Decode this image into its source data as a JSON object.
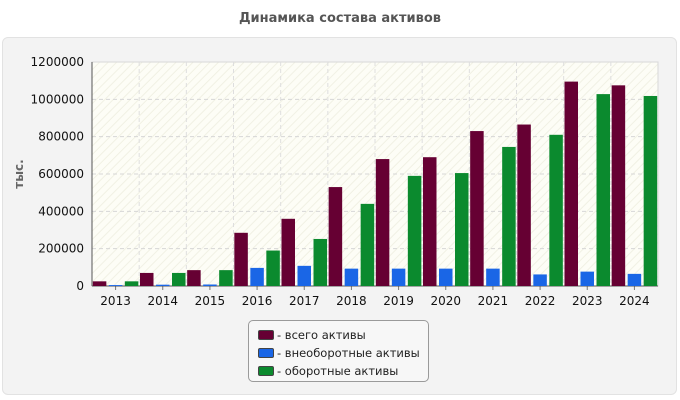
{
  "chart_data": {
    "type": "bar",
    "title": "Динамика состава активов",
    "xlabel": "",
    "ylabel": "тыс.",
    "ylim": [
      0,
      1200000
    ],
    "yticks": [
      "0",
      "200000",
      "400000",
      "600000",
      "800000",
      "1000000",
      "1200000"
    ],
    "grid": true,
    "legend_position": "bottom",
    "categories": [
      "2013",
      "2014",
      "2015",
      "2016",
      "2017",
      "2018",
      "2019",
      "2020",
      "2021",
      "2022",
      "2023",
      "2024"
    ],
    "series": [
      {
        "name": "- всего активы",
        "color": "#660033",
        "values": [
          25000,
          70000,
          85000,
          285000,
          360000,
          530000,
          680000,
          690000,
          830000,
          865000,
          1095000,
          1075000
        ]
      },
      {
        "name": "- внеоборотные активы",
        "color": "#1a66e6",
        "values": [
          5000,
          7000,
          8000,
          97000,
          108000,
          93000,
          93000,
          93000,
          93000,
          62000,
          77000,
          65000
        ]
      },
      {
        "name": "- оборотные активы",
        "color": "#0b8a2e",
        "values": [
          25000,
          70000,
          85000,
          190000,
          252000,
          440000,
          590000,
          605000,
          745000,
          810000,
          1028000,
          1018000
        ]
      }
    ]
  }
}
